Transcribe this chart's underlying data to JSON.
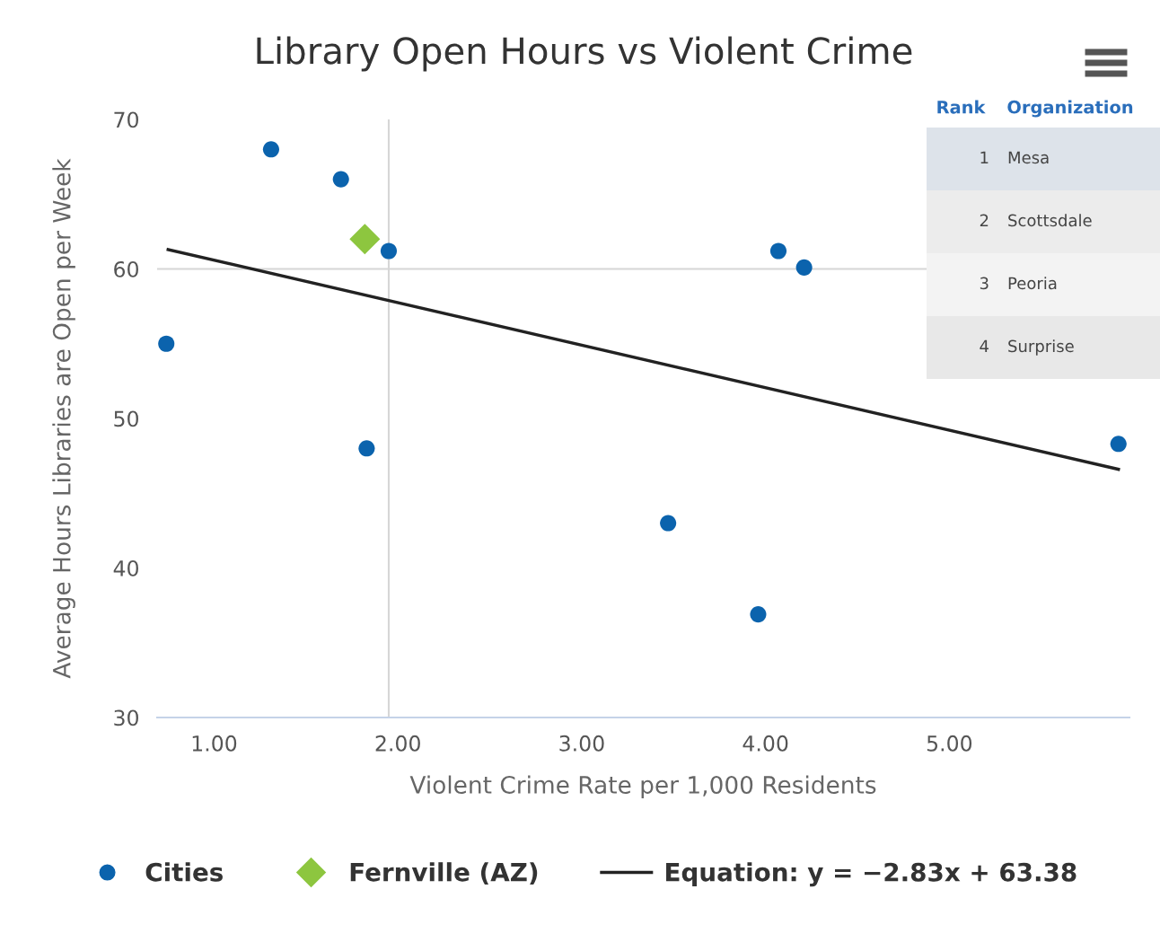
{
  "chart_data": {
    "type": "scatter",
    "title": "Library Open Hours vs Violent Crime",
    "xlabel": "Violent Crime Rate per 1,000 Residents",
    "ylabel": "Average Hours Libraries are Open per Week",
    "xlim": [
      0.69,
      5.98
    ],
    "xticks": [
      {
        "value": 1,
        "label": "1.00"
      },
      {
        "value": 2,
        "label": "2.00"
      },
      {
        "value": 3,
        "label": "3.00"
      },
      {
        "value": 4,
        "label": "4.00"
      },
      {
        "value": 5,
        "label": "5.00"
      }
    ],
    "ylim": [
      30,
      70
    ],
    "yticks": [
      30,
      40,
      50,
      60,
      70
    ],
    "grid": false,
    "legend": "bottom",
    "series": [
      {
        "name": "Cities",
        "marker": "circle",
        "color": "#0b63ad",
        "x": [
          0.74,
          1.31,
          1.69,
          1.95,
          1.83,
          3.47,
          3.96,
          4.07,
          4.21,
          5.92
        ],
        "values": [
          55.0,
          68.0,
          66.0,
          61.2,
          48.0,
          43.0,
          36.9,
          61.2,
          60.1,
          48.3
        ]
      },
      {
        "name": "Fernville (AZ)",
        "marker": "diamond",
        "color": "#8dc63f",
        "x": [
          1.82
        ],
        "values": [
          62.0
        ]
      },
      {
        "name": "Equation: y = −2.83x + 63.38",
        "type": "line",
        "marker": "none",
        "color": "#222222",
        "x": [
          0.75,
          5.92
        ],
        "values": [
          61.3,
          46.6
        ]
      }
    ],
    "ref_lines": [
      {
        "axis": "x",
        "value": 1.95,
        "color": "#d6d6d6"
      },
      {
        "axis": "y",
        "value": 60,
        "color": "#d6d6d6"
      }
    ],
    "annotations": [
      "Rank",
      "Organization",
      "1",
      "Mesa",
      "2",
      "Scottsdale",
      "3",
      "Peoria",
      "4",
      "Surprise"
    ]
  }
}
